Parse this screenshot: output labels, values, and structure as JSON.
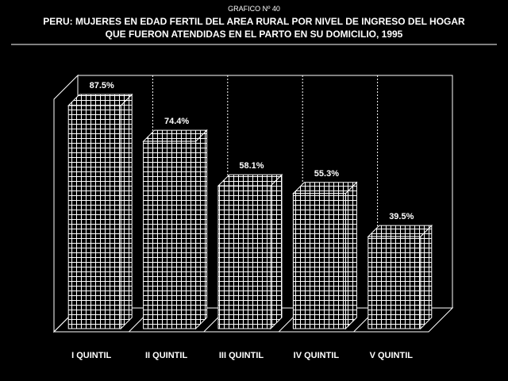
{
  "header": {
    "figure_number": "GRAFICO Nº 40",
    "title_line1": "PERU: MUJERES EN EDAD FERTIL DEL AREA RURAL POR NIVEL DE INGRESO DEL HOGAR",
    "title_line2": "QUE FUERON ATENDIDAS EN EL PARTO EN SU DOMICILIO, 1995"
  },
  "colors": {
    "background": "#000000",
    "foreground": "#ffffff"
  },
  "chart_data": {
    "type": "bar",
    "style": "3d-grid-pattern",
    "categories": [
      "I QUINTIL",
      "II QUINTIL",
      "III QUINTIL",
      "IV QUINTIL",
      "V QUINTIL"
    ],
    "values": [
      87.5,
      74.4,
      58.1,
      55.3,
      39.5
    ],
    "data_labels": [
      "87.5%",
      "74.4%",
      "58.1%",
      "55.3%",
      "39.5%"
    ],
    "ylim": [
      0,
      100
    ],
    "grid": false,
    "legend": "none"
  }
}
